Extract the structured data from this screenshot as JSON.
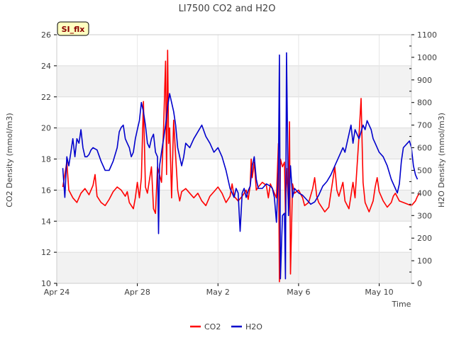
{
  "chart_data": {
    "type": "line",
    "title": "LI7500 CO2 and H2O",
    "badge": "SI_flx",
    "xlabel": "Time",
    "ylabel_left": "CO2 Density (mmol/m3)",
    "ylabel_right": "H2O Density (mmol/m3)",
    "xlim": [
      0,
      17.6
    ],
    "x_ticks": [
      {
        "x": 0,
        "label": "Apr 24"
      },
      {
        "x": 4,
        "label": "Apr 28"
      },
      {
        "x": 8,
        "label": "May 2"
      },
      {
        "x": 12,
        "label": "May 6"
      },
      {
        "x": 16,
        "label": "May 10"
      }
    ],
    "ylim_left": [
      10,
      26
    ],
    "yticks_left": [
      10,
      12,
      14,
      16,
      18,
      20,
      22,
      24,
      26
    ],
    "ylim_right": [
      0,
      1100
    ],
    "yticks_right": [
      0,
      100,
      200,
      300,
      400,
      500,
      600,
      700,
      800,
      900,
      1000,
      1100
    ],
    "grid": true,
    "legend_position": "bottom-center",
    "colors": {
      "CO2": "#ff0000",
      "H2O": "#0000cc",
      "band": "#f2f2f2",
      "badge_fill": "#ffffc0",
      "badge_text": "#8b0000"
    },
    "series": [
      {
        "name": "CO2",
        "axis": "left",
        "color": "#ff0000",
        "points": [
          [
            0.3,
            16.2
          ],
          [
            0.5,
            17.8
          ],
          [
            0.6,
            16.0
          ],
          [
            0.8,
            15.5
          ],
          [
            1.0,
            15.2
          ],
          [
            1.2,
            15.8
          ],
          [
            1.4,
            16.1
          ],
          [
            1.6,
            15.7
          ],
          [
            1.8,
            16.3
          ],
          [
            1.9,
            17.0
          ],
          [
            2.0,
            15.6
          ],
          [
            2.2,
            15.2
          ],
          [
            2.4,
            15.0
          ],
          [
            2.6,
            15.4
          ],
          [
            2.8,
            15.9
          ],
          [
            3.0,
            16.2
          ],
          [
            3.2,
            16.0
          ],
          [
            3.4,
            15.6
          ],
          [
            3.5,
            15.9
          ],
          [
            3.6,
            15.2
          ],
          [
            3.8,
            14.8
          ],
          [
            3.9,
            15.5
          ],
          [
            4.0,
            16.5
          ],
          [
            4.1,
            15.5
          ],
          [
            4.2,
            16.8
          ],
          [
            4.3,
            21.7
          ],
          [
            4.4,
            16.2
          ],
          [
            4.5,
            15.8
          ],
          [
            4.7,
            17.5
          ],
          [
            4.8,
            14.8
          ],
          [
            4.9,
            14.5
          ],
          [
            5.0,
            17.5
          ],
          [
            5.2,
            16.5
          ],
          [
            5.3,
            20.0
          ],
          [
            5.4,
            24.3
          ],
          [
            5.45,
            17.0
          ],
          [
            5.5,
            25.0
          ],
          [
            5.55,
            19.0
          ],
          [
            5.6,
            20.0
          ],
          [
            5.7,
            15.5
          ],
          [
            5.8,
            20.5
          ],
          [
            5.9,
            18.2
          ],
          [
            6.0,
            16.0
          ],
          [
            6.1,
            15.3
          ],
          [
            6.2,
            15.9
          ],
          [
            6.4,
            16.1
          ],
          [
            6.6,
            15.8
          ],
          [
            6.8,
            15.5
          ],
          [
            7.0,
            15.8
          ],
          [
            7.2,
            15.3
          ],
          [
            7.4,
            15.0
          ],
          [
            7.6,
            15.6
          ],
          [
            7.8,
            15.9
          ],
          [
            8.0,
            16.2
          ],
          [
            8.2,
            15.8
          ],
          [
            8.4,
            15.2
          ],
          [
            8.6,
            15.6
          ],
          [
            8.7,
            16.4
          ],
          [
            8.8,
            15.6
          ],
          [
            9.0,
            15.3
          ],
          [
            9.2,
            15.6
          ],
          [
            9.4,
            16.0
          ],
          [
            9.5,
            15.4
          ],
          [
            9.6,
            16.3
          ],
          [
            9.65,
            18.0
          ],
          [
            9.7,
            16.8
          ],
          [
            9.8,
            17.8
          ],
          [
            9.9,
            16.0
          ],
          [
            10.0,
            16.2
          ],
          [
            10.2,
            16.5
          ],
          [
            10.4,
            16.3
          ],
          [
            10.5,
            15.5
          ],
          [
            10.6,
            16.4
          ],
          [
            10.8,
            15.8
          ],
          [
            10.9,
            15.5
          ],
          [
            11.0,
            19.0
          ],
          [
            11.05,
            10.1
          ],
          [
            11.1,
            18.0
          ],
          [
            11.2,
            17.5
          ],
          [
            11.3,
            17.8
          ],
          [
            11.35,
            14.5
          ],
          [
            11.4,
            17.4
          ],
          [
            11.5,
            15.0
          ],
          [
            11.55,
            20.4
          ],
          [
            11.6,
            10.6
          ],
          [
            11.7,
            16.4
          ],
          [
            11.8,
            15.8
          ],
          [
            12.0,
            16.0
          ],
          [
            12.2,
            15.5
          ],
          [
            12.3,
            15.0
          ],
          [
            12.5,
            15.2
          ],
          [
            12.7,
            16.1
          ],
          [
            12.8,
            16.8
          ],
          [
            12.9,
            15.6
          ],
          [
            13.0,
            15.2
          ],
          [
            13.2,
            14.8
          ],
          [
            13.3,
            14.6
          ],
          [
            13.5,
            14.9
          ],
          [
            13.6,
            15.8
          ],
          [
            13.8,
            17.5
          ],
          [
            13.9,
            16.0
          ],
          [
            14.0,
            15.6
          ],
          [
            14.2,
            16.5
          ],
          [
            14.3,
            15.3
          ],
          [
            14.5,
            14.8
          ],
          [
            14.7,
            16.5
          ],
          [
            14.8,
            15.5
          ],
          [
            15.0,
            19.5
          ],
          [
            15.1,
            21.9
          ],
          [
            15.2,
            16.5
          ],
          [
            15.3,
            15.2
          ],
          [
            15.5,
            14.6
          ],
          [
            15.7,
            15.3
          ],
          [
            15.8,
            16.2
          ],
          [
            15.9,
            16.8
          ],
          [
            16.0,
            15.9
          ],
          [
            16.2,
            15.3
          ],
          [
            16.4,
            14.9
          ],
          [
            16.6,
            15.2
          ],
          [
            16.7,
            15.6
          ],
          [
            16.8,
            15.8
          ],
          [
            17.0,
            15.3
          ],
          [
            17.2,
            15.2
          ],
          [
            17.4,
            15.1
          ],
          [
            17.6,
            15.0
          ],
          [
            17.8,
            15.3
          ],
          [
            17.9,
            15.6
          ],
          [
            18.0,
            15.8
          ]
        ]
      },
      {
        "name": "H2O",
        "axis": "right",
        "color": "#0000cc",
        "points": [
          [
            0.3,
            510
          ],
          [
            0.4,
            380
          ],
          [
            0.5,
            560
          ],
          [
            0.6,
            520
          ],
          [
            0.7,
            580
          ],
          [
            0.8,
            640
          ],
          [
            0.9,
            560
          ],
          [
            1.0,
            640
          ],
          [
            1.1,
            620
          ],
          [
            1.2,
            680
          ],
          [
            1.3,
            600
          ],
          [
            1.4,
            560
          ],
          [
            1.5,
            560
          ],
          [
            1.6,
            570
          ],
          [
            1.7,
            590
          ],
          [
            1.8,
            600
          ],
          [
            2.0,
            590
          ],
          [
            2.2,
            540
          ],
          [
            2.4,
            500
          ],
          [
            2.6,
            500
          ],
          [
            2.8,
            540
          ],
          [
            3.0,
            600
          ],
          [
            3.1,
            670
          ],
          [
            3.2,
            690
          ],
          [
            3.3,
            700
          ],
          [
            3.4,
            640
          ],
          [
            3.5,
            620
          ],
          [
            3.6,
            600
          ],
          [
            3.7,
            560
          ],
          [
            3.8,
            580
          ],
          [
            3.9,
            640
          ],
          [
            4.0,
            680
          ],
          [
            4.1,
            720
          ],
          [
            4.2,
            800
          ],
          [
            4.3,
            760
          ],
          [
            4.4,
            700
          ],
          [
            4.5,
            620
          ],
          [
            4.6,
            600
          ],
          [
            4.7,
            640
          ],
          [
            4.8,
            660
          ],
          [
            4.9,
            580
          ],
          [
            5.0,
            560
          ],
          [
            5.05,
            220
          ],
          [
            5.1,
            520
          ],
          [
            5.2,
            580
          ],
          [
            5.3,
            640
          ],
          [
            5.4,
            700
          ],
          [
            5.5,
            780
          ],
          [
            5.6,
            840
          ],
          [
            5.7,
            800
          ],
          [
            5.8,
            760
          ],
          [
            5.9,
            700
          ],
          [
            6.0,
            600
          ],
          [
            6.1,
            560
          ],
          [
            6.2,
            520
          ],
          [
            6.3,
            560
          ],
          [
            6.4,
            620
          ],
          [
            6.6,
            600
          ],
          [
            6.8,
            640
          ],
          [
            7.0,
            670
          ],
          [
            7.2,
            700
          ],
          [
            7.4,
            650
          ],
          [
            7.6,
            620
          ],
          [
            7.8,
            580
          ],
          [
            8.0,
            600
          ],
          [
            8.2,
            560
          ],
          [
            8.4,
            500
          ],
          [
            8.6,
            420
          ],
          [
            8.8,
            380
          ],
          [
            8.9,
            420
          ],
          [
            9.0,
            400
          ],
          [
            9.1,
            230
          ],
          [
            9.2,
            400
          ],
          [
            9.3,
            420
          ],
          [
            9.4,
            380
          ],
          [
            9.5,
            410
          ],
          [
            9.6,
            430
          ],
          [
            9.7,
            520
          ],
          [
            9.8,
            560
          ],
          [
            9.9,
            460
          ],
          [
            10.0,
            420
          ],
          [
            10.2,
            420
          ],
          [
            10.4,
            440
          ],
          [
            10.6,
            430
          ],
          [
            10.7,
            420
          ],
          [
            10.8,
            380
          ],
          [
            10.9,
            270
          ],
          [
            11.0,
            500
          ],
          [
            11.05,
            1010
          ],
          [
            11.1,
            20
          ],
          [
            11.2,
            300
          ],
          [
            11.3,
            310
          ],
          [
            11.35,
            20
          ],
          [
            11.4,
            1020
          ],
          [
            11.5,
            300
          ],
          [
            11.6,
            520
          ],
          [
            11.7,
            380
          ],
          [
            11.8,
            420
          ],
          [
            12.0,
            400
          ],
          [
            12.2,
            390
          ],
          [
            12.4,
            370
          ],
          [
            12.6,
            350
          ],
          [
            12.8,
            360
          ],
          [
            13.0,
            390
          ],
          [
            13.2,
            430
          ],
          [
            13.4,
            450
          ],
          [
            13.6,
            480
          ],
          [
            13.8,
            520
          ],
          [
            14.0,
            560
          ],
          [
            14.2,
            600
          ],
          [
            14.3,
            580
          ],
          [
            14.4,
            620
          ],
          [
            14.6,
            700
          ],
          [
            14.7,
            620
          ],
          [
            14.8,
            680
          ],
          [
            15.0,
            640
          ],
          [
            15.2,
            700
          ],
          [
            15.3,
            680
          ],
          [
            15.4,
            720
          ],
          [
            15.6,
            680
          ],
          [
            15.7,
            640
          ],
          [
            15.8,
            620
          ],
          [
            16.0,
            580
          ],
          [
            16.2,
            560
          ],
          [
            16.4,
            520
          ],
          [
            16.6,
            460
          ],
          [
            16.8,
            420
          ],
          [
            16.9,
            400
          ],
          [
            17.0,
            440
          ],
          [
            17.1,
            540
          ],
          [
            17.2,
            600
          ],
          [
            17.4,
            620
          ],
          [
            17.5,
            630
          ],
          [
            17.6,
            600
          ],
          [
            17.7,
            520
          ],
          [
            17.8,
            480
          ],
          [
            17.9,
            460
          ]
        ]
      }
    ]
  }
}
